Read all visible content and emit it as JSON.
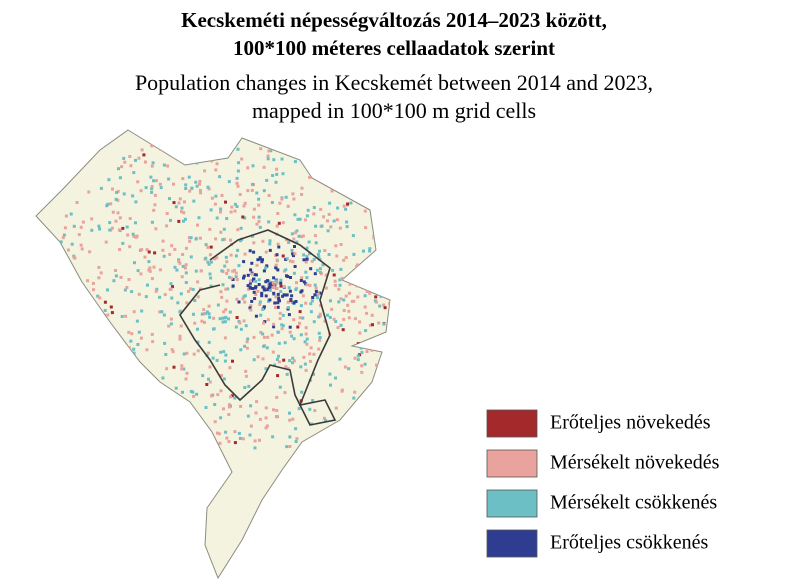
{
  "title": {
    "lines": [
      "Kecskeméti népességváltozás 2014–2023 között,",
      "100*100 méteres cellaadatok szerint"
    ]
  },
  "subtitle": {
    "lines": [
      "Population changes in Kecskemét between 2014 and 2023,",
      "mapped in 100*100 m grid cells"
    ]
  },
  "legend": {
    "items": [
      {
        "label": "Erőteljes növekedés",
        "color": "#a3292b"
      },
      {
        "label": "Mérsékelt növekedés",
        "color": "#e9a39c"
      },
      {
        "label": "Mérsékelt csökkenés",
        "color": "#6cc0c5"
      },
      {
        "label": "Erőteljes csökkenés",
        "color": "#2e3d92"
      }
    ]
  }
}
